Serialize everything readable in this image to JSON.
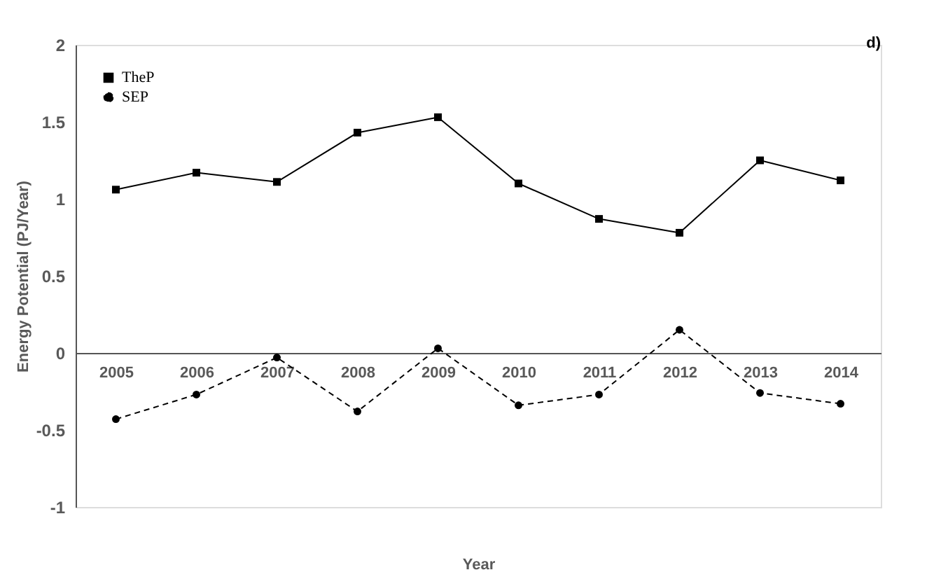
{
  "chart_data": {
    "type": "line",
    "title": "d)",
    "xlabel": "Year",
    "ylabel": "Energy Potential (PJ/Year)",
    "categories": [
      "2005",
      "2006",
      "2007",
      "2008",
      "2009",
      "2010",
      "2011",
      "2012",
      "2013",
      "2014"
    ],
    "series": [
      {
        "name": "TheP",
        "color": "#000000",
        "marker": "square",
        "line_style": "solid",
        "values": [
          1.06,
          1.17,
          1.11,
          1.43,
          1.53,
          1.1,
          0.87,
          0.78,
          1.25,
          1.12
        ]
      },
      {
        "name": "SEP",
        "color": "#000000",
        "marker": "circle",
        "line_style": "dashed",
        "values": [
          -0.43,
          -0.27,
          -0.03,
          -0.38,
          0.03,
          -0.34,
          -0.27,
          0.15,
          -0.26,
          -0.33
        ]
      }
    ],
    "ylim": [
      -1,
      2
    ],
    "yticks": [
      -1,
      -0.5,
      0,
      0.5,
      1,
      1.5,
      2
    ],
    "grid": false,
    "legend": "top left"
  }
}
